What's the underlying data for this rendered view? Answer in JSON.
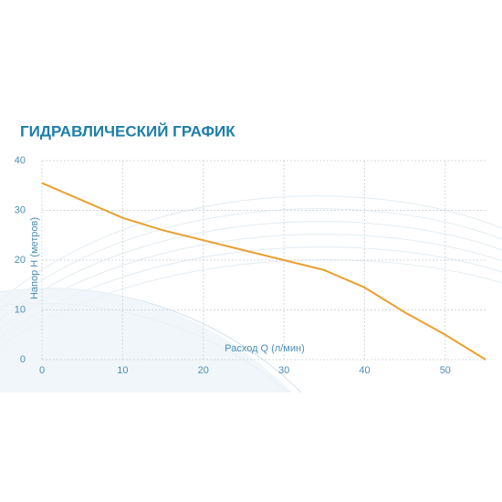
{
  "chart_data": {
    "type": "line",
    "title": "ГИДРАВЛИЧЕСКИЙ ГРАФИК",
    "x_label": "Расход Q (л/мин)",
    "y_label": "Напор Н (метров)",
    "x": [
      0,
      5,
      10,
      15,
      20,
      25,
      30,
      35,
      40,
      45,
      50,
      55
    ],
    "series": [
      {
        "color": "#e8a030",
        "values": [
          35.5,
          32,
          28.5,
          26,
          24,
          22,
          20,
          18,
          14.5,
          9.5,
          5,
          0
        ]
      }
    ],
    "xlim": [
      0,
      55
    ],
    "ylim": [
      0,
      40
    ],
    "xticks": [
      0,
      10,
      20,
      30,
      40,
      50
    ],
    "yticks": [
      0,
      10,
      20,
      30,
      40
    ],
    "grid": true
  }
}
